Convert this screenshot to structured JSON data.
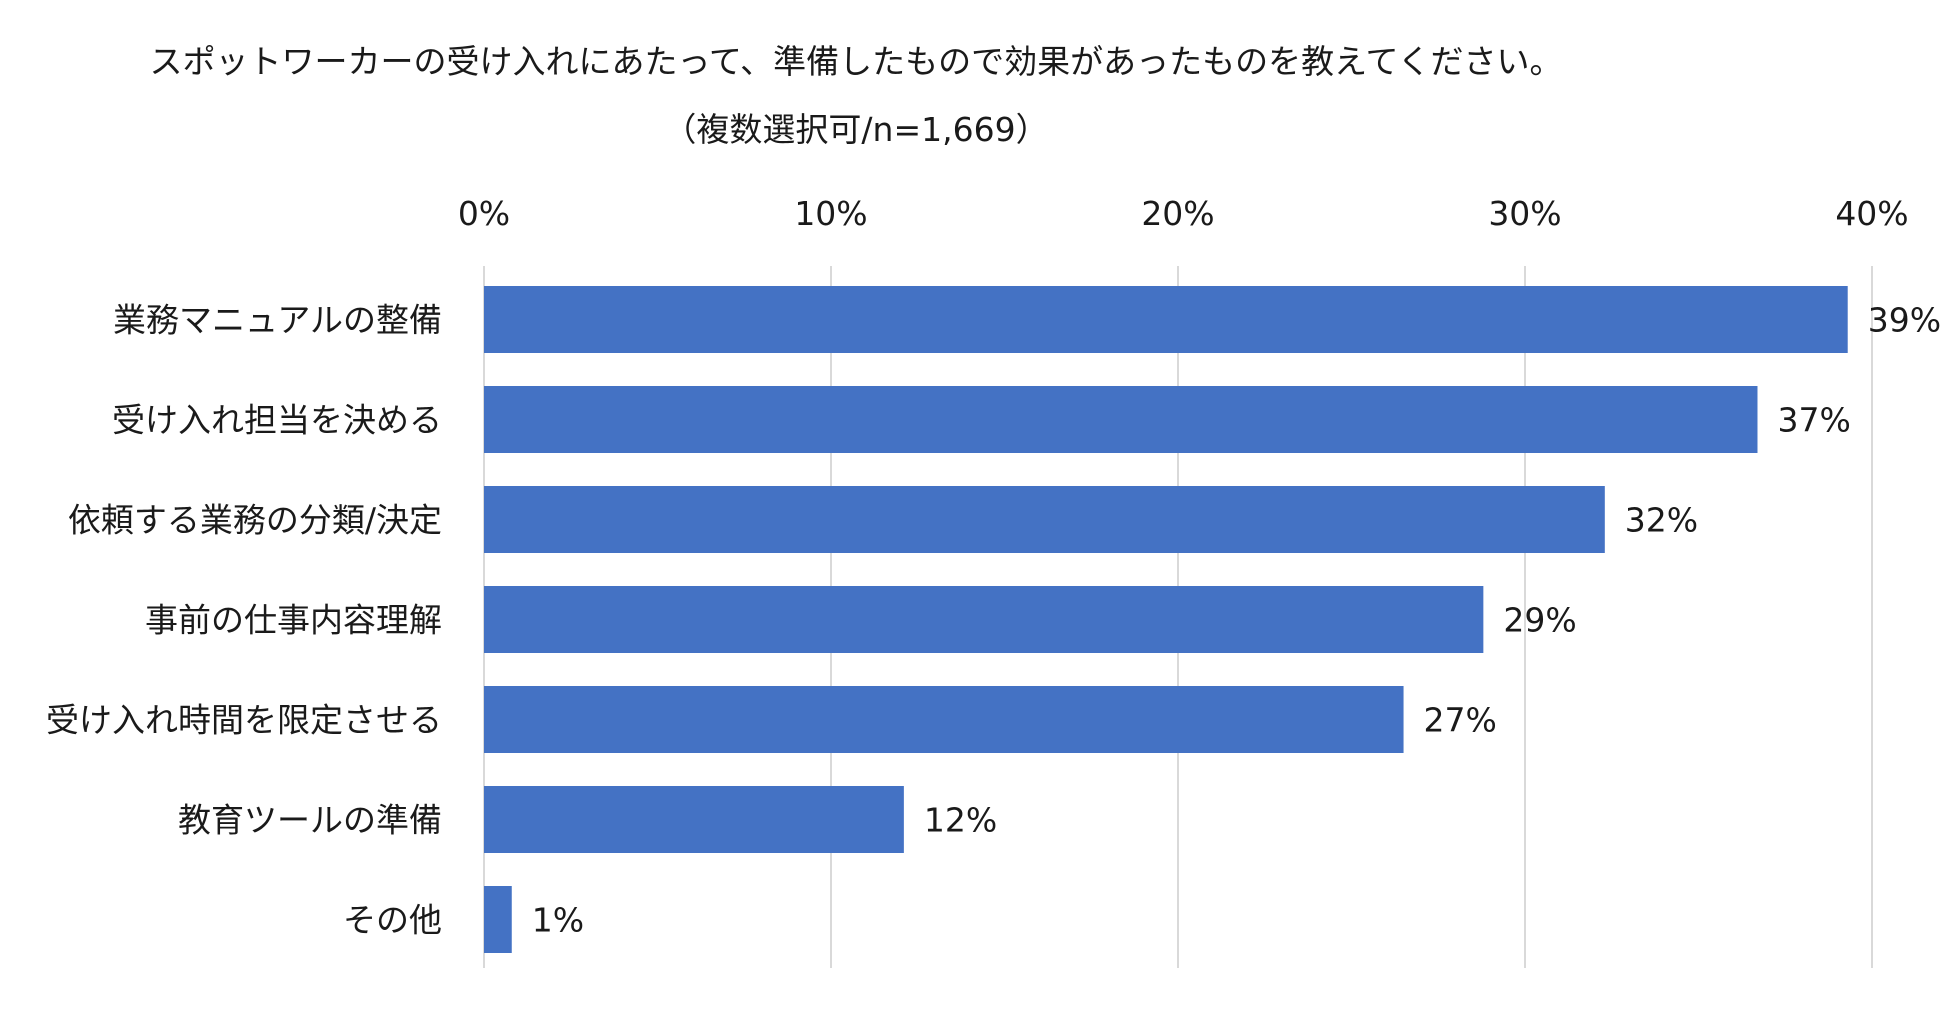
{
  "chart_data": {
    "type": "bar",
    "orientation": "horizontal",
    "title": "スポットワーカーの受け入れにあたって、準備したもので効果があったものを教えてください。",
    "subtitle": "（複数選択可/n=1,669）",
    "categories": [
      "業務マニュアルの整備",
      "受け入れ担当を決める",
      "依頼する業務の分類/決定",
      "事前の仕事内容理解",
      "受け入れ時間を限定させる",
      "教育ツールの準備",
      "その他"
    ],
    "values": [
      39.3,
      36.7,
      32.3,
      28.8,
      26.5,
      12.1,
      0.8
    ],
    "data_labels": [
      "39%",
      "37%",
      "32%",
      "29%",
      "27%",
      "12%",
      "1%"
    ],
    "xlim": [
      0,
      40
    ],
    "xticks": [
      0,
      10,
      20,
      30,
      40
    ],
    "xtick_labels": [
      "0%",
      "10%",
      "20%",
      "30%",
      "40%"
    ],
    "axis_position": "top",
    "grid": true,
    "legend": "none",
    "bar_color": "#4472C4",
    "grid_color": "#D9D9D9",
    "xlabel": "",
    "ylabel": ""
  }
}
